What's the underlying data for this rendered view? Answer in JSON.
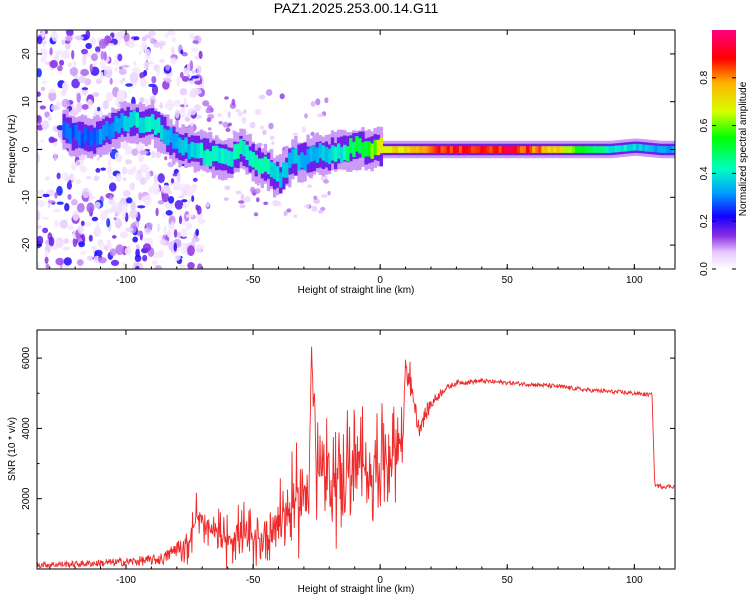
{
  "figure": {
    "title": "PAZ1.2025.253.00.14.G11"
  },
  "colors": {
    "snr_line": "#ee2a2a",
    "frame": "#000000",
    "background": "#ffffff",
    "colormap": [
      "#ffffff",
      "#e6c8ff",
      "#8a2be2",
      "#1400ff",
      "#00a0ff",
      "#00ffc0",
      "#00ff00",
      "#d8ff00",
      "#ffb000",
      "#ff0000",
      "#ff0080"
    ]
  },
  "chart_data": [
    {
      "type": "heatmap",
      "title": "PAZ1.2025.253.00.14.G11",
      "xlabel": "Height of straight line (km)",
      "ylabel": "Frequency (Hz)",
      "xlim": [
        -135,
        116
      ],
      "ylim": [
        -25,
        25
      ],
      "xticks": [
        -100,
        -50,
        0,
        50,
        100
      ],
      "xtick_labels": [
        "-100",
        "-50",
        "0",
        "50",
        "100"
      ],
      "yticks": [
        -20,
        -10,
        0,
        10,
        20
      ],
      "ytick_labels": [
        "-20",
        "-10",
        "0",
        "10",
        "20"
      ],
      "colorbar": {
        "label": "Normalized spectral amplitude",
        "range": [
          0.0,
          1.0
        ],
        "ticks": [
          0.0,
          0.2,
          0.4,
          0.6,
          0.8
        ],
        "tick_labels": [
          "0.0",
          "0.2",
          "0.4",
          "0.6",
          "0.8"
        ]
      },
      "ridge": {
        "description": "frequency of main spectral feature vs height",
        "height_km": [
          -125,
          -115,
          -100,
          -90,
          -80,
          -75,
          -70,
          -65,
          -60,
          -55,
          -50,
          -45,
          -40,
          -35,
          -30,
          -25,
          -20,
          -15,
          -10,
          -5,
          0,
          10,
          20,
          30,
          40,
          50,
          60,
          70,
          80,
          90,
          100,
          110,
          116
        ],
        "frequency_hz": [
          4,
          2,
          6,
          5.5,
          1,
          0,
          -1,
          -1.5,
          -2,
          0,
          -2,
          -4,
          -6,
          -2,
          -2,
          -1,
          -1,
          -0.5,
          0.5,
          0.3,
          0,
          0,
          0,
          0,
          0,
          0,
          0,
          0,
          0,
          0,
          0.5,
          0,
          0
        ],
        "amplitude": [
          0.3,
          0.3,
          0.4,
          0.45,
          0.35,
          0.4,
          0.45,
          0.45,
          0.45,
          0.45,
          0.45,
          0.45,
          0.4,
          0.4,
          0.35,
          0.4,
          0.4,
          0.45,
          0.55,
          0.6,
          0.75,
          0.8,
          0.9,
          0.95,
          0.97,
          0.98,
          0.9,
          0.75,
          0.55,
          0.45,
          0.4,
          0.35,
          0.35
        ]
      }
    },
    {
      "type": "line",
      "xlabel": "Height of straight line (km)",
      "ylabel": "SNR (10 * v/v)",
      "xlim": [
        -135,
        116
      ],
      "ylim": [
        0,
        6800
      ],
      "xticks": [
        -100,
        -50,
        0,
        50,
        100
      ],
      "xtick_labels": [
        "-100",
        "-50",
        "0",
        "50",
        "100"
      ],
      "yticks": [
        2000,
        4000,
        6000
      ],
      "ytick_labels": [
        "2000",
        "4000",
        "6000"
      ],
      "series": [
        {
          "name": "SNR",
          "x": [
            -135,
            -120,
            -100,
            -90,
            -85,
            -80,
            -75,
            -72,
            -70,
            -65,
            -60,
            -55,
            -50,
            -45,
            -40,
            -35,
            -30,
            -28,
            -27,
            -25,
            -20,
            -15,
            -10,
            -5,
            0,
            5,
            9,
            10,
            15,
            20,
            25,
            30,
            40,
            50,
            60,
            70,
            80,
            90,
            100,
            107,
            108,
            110,
            116
          ],
          "y": [
            120,
            140,
            200,
            250,
            300,
            600,
            800,
            1600,
            1200,
            1000,
            900,
            1000,
            800,
            900,
            1500,
            1700,
            2200,
            2600,
            6200,
            2800,
            2500,
            2700,
            2900,
            2800,
            3100,
            3400,
            3700,
            6000,
            4000,
            4700,
            5100,
            5300,
            5350,
            5300,
            5250,
            5200,
            5100,
            5050,
            5000,
            4950,
            2400,
            2350,
            2350
          ],
          "noise_envelope": [
            150,
            150,
            200,
            250,
            300,
            400,
            500,
            700,
            700,
            700,
            700,
            800,
            800,
            900,
            1200,
            1300,
            1500,
            1600,
            800,
            1600,
            1700,
            1700,
            1700,
            1600,
            1500,
            1300,
            1000,
            500,
            500,
            300,
            150,
            120,
            110,
            100,
            100,
            100,
            100,
            100,
            100,
            100,
            100,
            100,
            100
          ]
        }
      ]
    }
  ]
}
